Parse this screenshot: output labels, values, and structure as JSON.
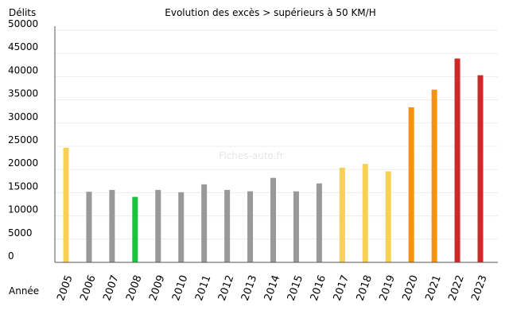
{
  "chart_data": {
    "type": "bar",
    "title": "Evolution des excès > supérieurs à 50 KM/H",
    "ylabel": "Délits",
    "xlabel": "Année",
    "watermark": "Fiches-auto.fr",
    "ylim": [
      0,
      50000
    ],
    "yticks": [
      0,
      5000,
      10000,
      15000,
      20000,
      25000,
      30000,
      35000,
      40000,
      45000,
      50000
    ],
    "grid": true,
    "categories": [
      "2005",
      "2006",
      "2007",
      "2008",
      "2009",
      "2010",
      "2011",
      "2012",
      "2013",
      "2014",
      "2015",
      "2016",
      "2017",
      "2018",
      "2019",
      "2020",
      "2021",
      "2022",
      "2023"
    ],
    "values": [
      24700,
      15200,
      15600,
      14100,
      15600,
      15100,
      16800,
      15600,
      15300,
      18200,
      15300,
      17000,
      20400,
      21200,
      19600,
      33400,
      37200,
      43900,
      40300
    ],
    "colors": [
      "#f7d154",
      "#999999",
      "#999999",
      "#19c43b",
      "#999999",
      "#999999",
      "#999999",
      "#999999",
      "#999999",
      "#999999",
      "#999999",
      "#999999",
      "#f7d154",
      "#f7d154",
      "#f7d154",
      "#f7920f",
      "#f7920f",
      "#cc2a29",
      "#cc2a29"
    ]
  }
}
